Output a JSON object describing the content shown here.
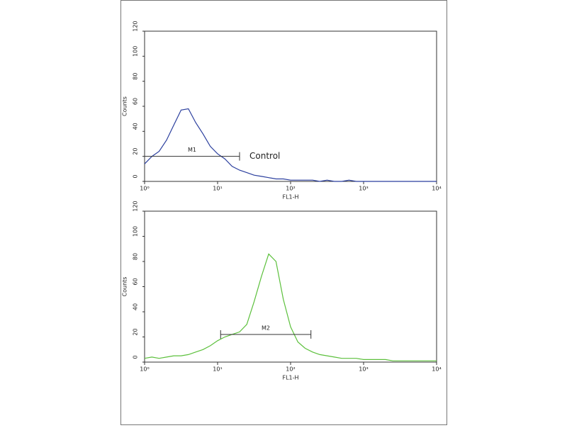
{
  "chart_data": [
    {
      "type": "line",
      "xscale": "log",
      "xlabel": "FL1-H",
      "ylabel": "Counts",
      "xlim": [
        1,
        10000
      ],
      "ylim": [
        0,
        120
      ],
      "xticks": [
        {
          "value": 1,
          "label": "10⁰"
        },
        {
          "value": 10,
          "label": "10¹"
        },
        {
          "value": 100,
          "label": "10²"
        },
        {
          "value": 1000,
          "label": "10³"
        },
        {
          "value": 10000,
          "label": "10⁴"
        }
      ],
      "yticks": [
        0,
        20,
        40,
        60,
        80,
        100,
        120
      ],
      "x": [
        1,
        1.26,
        1.58,
        2,
        2.51,
        3.16,
        3.98,
        5.01,
        6.31,
        7.94,
        10,
        12.6,
        15.8,
        20,
        25.1,
        31.6,
        39.8,
        50.1,
        63.1,
        79.4,
        100,
        126,
        158,
        200,
        251,
        316,
        398,
        501,
        631,
        794,
        1000,
        1259,
        1585,
        1995,
        2512,
        3162,
        3981,
        5012,
        6310,
        7943,
        10000
      ],
      "series": [
        {
          "color": "#2b3f9e",
          "values": [
            14,
            20,
            24,
            33,
            45,
            57,
            58,
            47,
            38,
            28,
            22,
            18,
            12,
            9,
            7,
            5,
            4,
            3,
            2,
            2,
            1,
            1,
            1,
            1,
            0,
            1,
            0,
            0,
            1,
            0,
            0,
            0,
            0,
            0,
            0,
            0,
            0,
            0,
            0,
            0,
            0
          ]
        }
      ],
      "markers": [
        {
          "label": "M1",
          "x": [
            1,
            20
          ],
          "y": 20
        }
      ],
      "annotation": "Control"
    },
    {
      "type": "line",
      "xscale": "log",
      "xlabel": "FL1-H",
      "ylabel": "Counts",
      "xlim": [
        1,
        10000
      ],
      "ylim": [
        0,
        120
      ],
      "xticks": [
        {
          "value": 1,
          "label": "10⁰"
        },
        {
          "value": 10,
          "label": "10¹"
        },
        {
          "value": 100,
          "label": "10²"
        },
        {
          "value": 1000,
          "label": "10³"
        },
        {
          "value": 10000,
          "label": "10⁴"
        }
      ],
      "yticks": [
        0,
        20,
        40,
        60,
        80,
        100,
        120
      ],
      "x": [
        1,
        1.26,
        1.58,
        2,
        2.51,
        3.16,
        3.98,
        5.01,
        6.31,
        7.94,
        10,
        12.6,
        15.8,
        20,
        25.1,
        31.6,
        39.8,
        50.1,
        63.1,
        79.4,
        100,
        126,
        158,
        200,
        251,
        316,
        398,
        501,
        631,
        794,
        1000,
        1259,
        1585,
        1995,
        2512,
        3162,
        3981,
        5012,
        6310,
        7943,
        10000
      ],
      "series": [
        {
          "color": "#5cc03c",
          "values": [
            3,
            4,
            3,
            4,
            5,
            5,
            6,
            8,
            10,
            13,
            17,
            20,
            22,
            24,
            30,
            48,
            68,
            86,
            80,
            50,
            28,
            16,
            11,
            8,
            6,
            5,
            4,
            3,
            3,
            3,
            2,
            2,
            2,
            2,
            1,
            1,
            1,
            1,
            1,
            1,
            1
          ]
        }
      ],
      "markers": [
        {
          "label": "M2",
          "x": [
            11,
            190
          ],
          "y": 22
        }
      ]
    }
  ]
}
